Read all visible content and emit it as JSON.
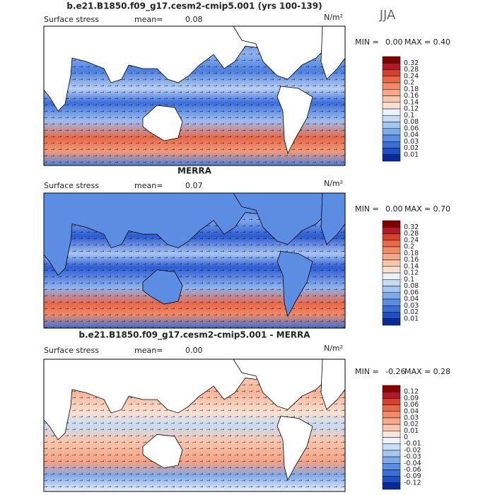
{
  "season": "JJA",
  "panels": [
    {
      "title": "b.e21.B1850.f09_g17.cesm2-cmip5.001 (yrs 100-139)",
      "variable": "Surface stress",
      "mean_label": "mean=",
      "mean": "0.08",
      "units": "N/m²",
      "min_label": "MIN =",
      "min": "0.00",
      "max_label": "MAX =",
      "max": "0.40",
      "colorbar": {
        "labels": [
          "0.32",
          "0.28",
          "0.24",
          "0.2",
          "0.18",
          "0.16",
          "0.14",
          "0.12",
          "0.1",
          "0.08",
          "0.06",
          "0.04",
          "0.03",
          "0.02",
          "0.01"
        ],
        "colors": [
          "#800000",
          "#b2182b",
          "#d6402c",
          "#e8684a",
          "#f08a68",
          "#f6a98a",
          "#f9c6ad",
          "#fbe0d0",
          "#eaf0fb",
          "#c7dcf5",
          "#a5c6ef",
          "#7eaaea",
          "#5b8de3",
          "#3a6fd8",
          "#1f4fc4",
          "#0a2a9a"
        ]
      }
    },
    {
      "title": "MERRA",
      "variable": "Surface stress",
      "mean_label": "mean=",
      "mean": "0.07",
      "units": "N/m²",
      "min_label": "MIN =",
      "min": "0.00",
      "max_label": "MAX =",
      "max": "0.70",
      "colorbar": {
        "labels": [
          "0.32",
          "0.28",
          "0.24",
          "0.2",
          "0.18",
          "0.16",
          "0.14",
          "0.12",
          "0.1",
          "0.08",
          "0.06",
          "0.04",
          "0.03",
          "0.02",
          "0.01"
        ],
        "colors": [
          "#800000",
          "#b2182b",
          "#d6402c",
          "#e8684a",
          "#f08a68",
          "#f6a98a",
          "#f9c6ad",
          "#fbe0d0",
          "#eaf0fb",
          "#c7dcf5",
          "#a5c6ef",
          "#7eaaea",
          "#5b8de3",
          "#3a6fd8",
          "#1f4fc4",
          "#0a2a9a"
        ]
      }
    },
    {
      "title": "b.e21.B1850.f09_g17.cesm2-cmip5.001 - MERRA",
      "variable": "Surface stress",
      "mean_label": "mean=",
      "mean": "0.00",
      "units": "N/m²",
      "min_label": "MIN =",
      "min": "-0.26",
      "max_label": "MAX =",
      "max": "0.28",
      "colorbar": {
        "labels": [
          "0.12",
          "0.09",
          "0.06",
          "0.04",
          "0.03",
          "0.02",
          "0.01",
          "0",
          "-0.01",
          "-0.02",
          "-0.03",
          "-0.04",
          "-0.06",
          "-0.09",
          "-0.12"
        ],
        "colors": [
          "#8b0000",
          "#b2182b",
          "#d6402c",
          "#e8684a",
          "#f08a68",
          "#f6a98a",
          "#f9c6ad",
          "#fbe6da",
          "#eef3fc",
          "#c7dcf5",
          "#a5c6ef",
          "#7eaaea",
          "#5b8de3",
          "#3a6fd8",
          "#1f4fc4",
          "#0a2a9a"
        ]
      }
    }
  ]
}
